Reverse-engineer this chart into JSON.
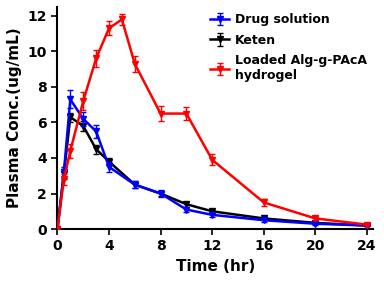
{
  "blue_x": [
    0,
    0.5,
    1,
    2,
    3,
    4,
    6,
    8,
    10,
    12,
    16,
    20,
    24
  ],
  "blue_y": [
    0,
    3.2,
    7.3,
    6.2,
    5.5,
    3.5,
    2.5,
    2.0,
    1.1,
    0.8,
    0.5,
    0.3,
    0.2
  ],
  "blue_err": [
    0,
    0.3,
    0.5,
    0.4,
    0.35,
    0.3,
    0.2,
    0.2,
    0.15,
    0.1,
    0.08,
    0.05,
    0.04
  ],
  "black_x": [
    0,
    0.5,
    1,
    2,
    3,
    4,
    6,
    8,
    10,
    12,
    16,
    20,
    24
  ],
  "black_y": [
    0,
    3.1,
    6.3,
    5.8,
    4.5,
    3.8,
    2.5,
    2.0,
    1.4,
    1.0,
    0.6,
    0.35,
    0.2
  ],
  "black_err": [
    0,
    0.3,
    0.25,
    0.3,
    0.25,
    0.2,
    0.2,
    0.15,
    0.15,
    0.1,
    0.1,
    0.05,
    0.05
  ],
  "red_x": [
    0,
    0.5,
    1,
    2,
    3,
    4,
    5,
    6,
    8,
    10,
    12,
    16,
    20,
    24
  ],
  "red_y": [
    0,
    2.8,
    4.4,
    7.2,
    9.6,
    11.3,
    11.8,
    9.3,
    6.5,
    6.5,
    3.9,
    1.5,
    0.6,
    0.25
  ],
  "red_err": [
    0,
    0.3,
    0.4,
    0.5,
    0.5,
    0.4,
    0.3,
    0.45,
    0.4,
    0.35,
    0.3,
    0.2,
    0.1,
    0.04
  ],
  "blue_color": "#0000ff",
  "black_color": "#000000",
  "red_color": "#ff0000",
  "xlabel": "Time (hr)",
  "ylabel": "Plasma Conc.(ug/mL)",
  "xlim": [
    0,
    24.5
  ],
  "ylim": [
    0,
    12.5
  ],
  "xticks": [
    0,
    4,
    8,
    12,
    16,
    20,
    24
  ],
  "yticks": [
    0,
    2,
    4,
    6,
    8,
    10,
    12
  ],
  "legend_labels": [
    "Drug solution",
    "Keten",
    "Loaded Alg-g-PAcA\nhydrogel"
  ],
  "label_fontsize": 11,
  "legend_fontsize": 9,
  "tick_fontsize": 10,
  "linewidth": 1.8,
  "markersize": 5
}
